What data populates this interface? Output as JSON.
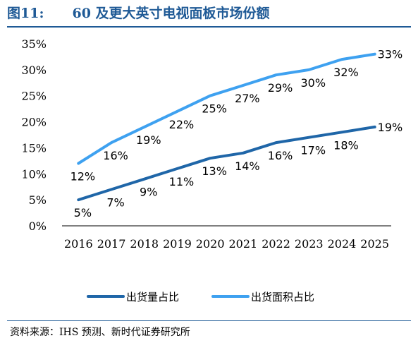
{
  "figure": {
    "number": "图11:",
    "title": "60 及更大英寸电视面板市场份额"
  },
  "source": "资料来源：IHS 预测、新时代证券研究所",
  "chart_data": {
    "type": "line",
    "title": "60 及更大英寸电视面板市场份额",
    "x": [
      "2016",
      "2017",
      "2018",
      "2019",
      "2020",
      "2021",
      "2022",
      "2023",
      "2024",
      "2025"
    ],
    "y_ticks": [
      "0%",
      "5%",
      "10%",
      "15%",
      "20%",
      "25%",
      "30%",
      "35%"
    ],
    "ylim": [
      0,
      35
    ],
    "grid": false,
    "legend_position": "bottom",
    "series": [
      {
        "name": "出货量占比",
        "color": "#1f66a8",
        "values": [
          5,
          7,
          9,
          11,
          13,
          14,
          16,
          17,
          18,
          19
        ],
        "labels": [
          "5%",
          "7%",
          "9%",
          "11%",
          "13%",
          "14%",
          "16%",
          "17%",
          "18%",
          "19%"
        ]
      },
      {
        "name": "出货面积占比",
        "color": "#3ea1f0",
        "values": [
          12,
          16,
          19,
          22,
          25,
          27,
          29,
          30,
          32,
          33
        ],
        "labels": [
          "12%",
          "16%",
          "19%",
          "22%",
          "25%",
          "27%",
          "29%",
          "30%",
          "32%",
          "33%"
        ]
      }
    ]
  }
}
